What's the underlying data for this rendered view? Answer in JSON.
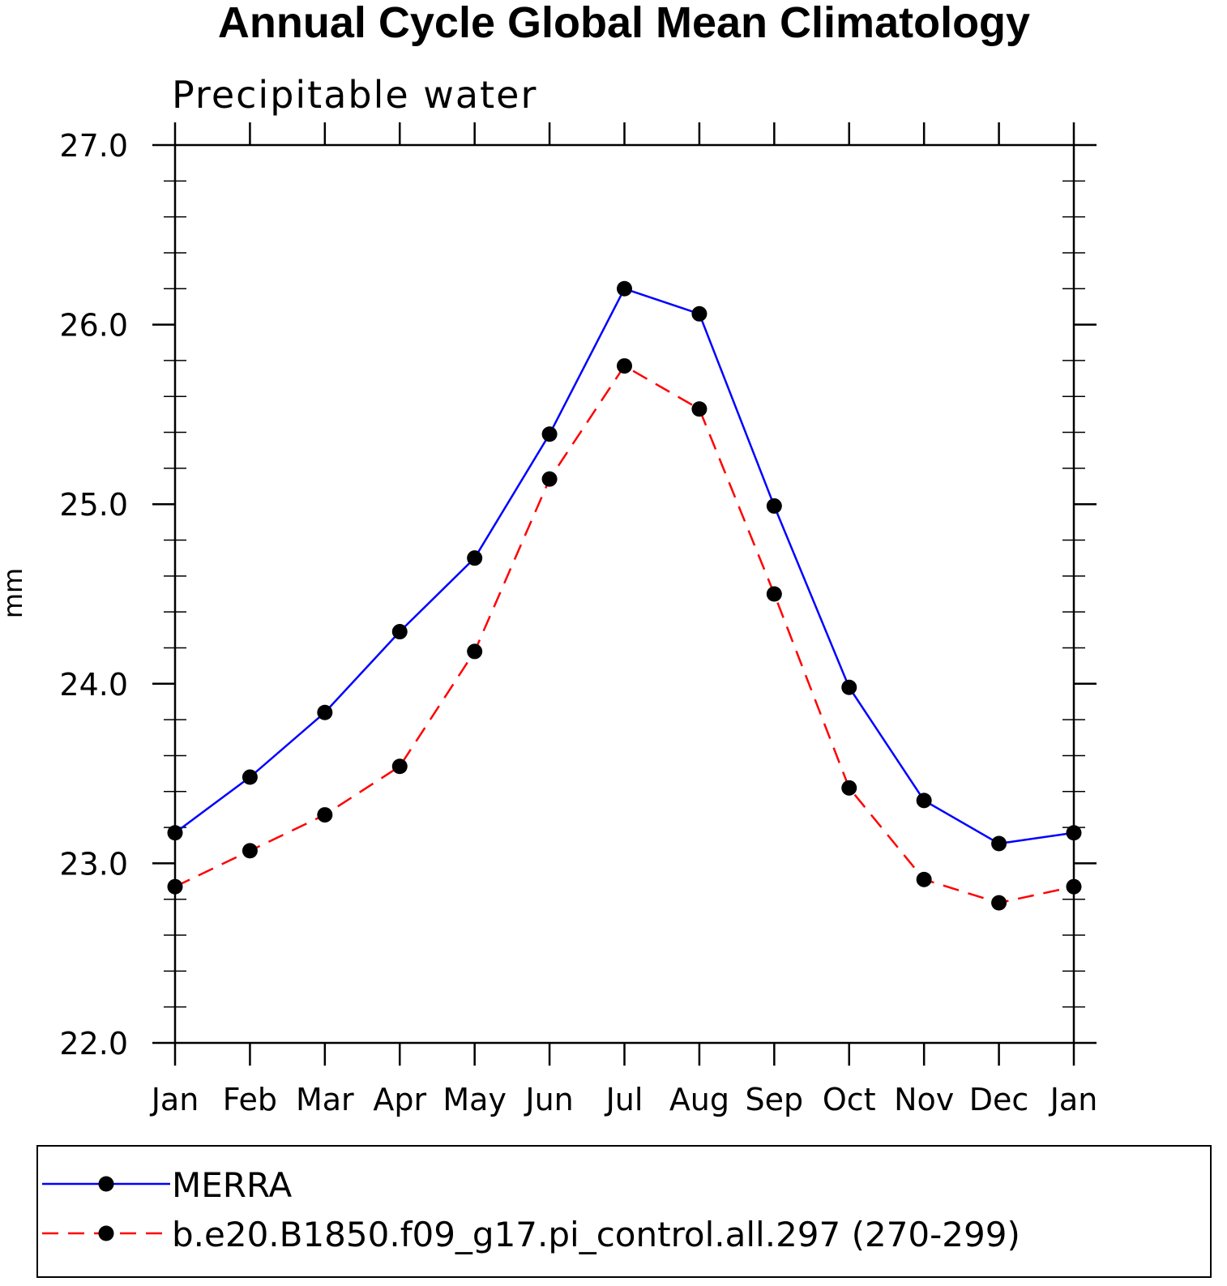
{
  "chart_data": {
    "type": "line",
    "title": "Annual Cycle Global Mean Climatology",
    "subtitle": "Precipitable water",
    "xlabel": "",
    "ylabel": "mm",
    "categories": [
      "Jan",
      "Feb",
      "Mar",
      "Apr",
      "May",
      "Jun",
      "Jul",
      "Aug",
      "Sep",
      "Oct",
      "Nov",
      "Dec",
      "Jan"
    ],
    "ylim": [
      22.0,
      27.0
    ],
    "yticks": [
      "22.0",
      "23.0",
      "24.0",
      "25.0",
      "26.0",
      "27.0"
    ],
    "grid": false,
    "legend_position": "bottom",
    "series": [
      {
        "name": "MERRA",
        "color": "#0000ff",
        "line_style": "solid",
        "marker": "filled-circle",
        "values": [
          23.17,
          23.48,
          23.84,
          24.29,
          24.7,
          25.39,
          26.2,
          26.06,
          24.99,
          23.98,
          23.35,
          23.11,
          23.17
        ]
      },
      {
        "name": "b.e20.B1850.f09_g17.pi_control.all.297 (270-299)",
        "color": "#ff0000",
        "line_style": "dashed",
        "marker": "filled-circle",
        "values": [
          22.87,
          23.07,
          23.27,
          23.54,
          24.18,
          25.14,
          25.77,
          25.53,
          24.5,
          23.42,
          22.91,
          22.78,
          22.87
        ]
      }
    ]
  }
}
